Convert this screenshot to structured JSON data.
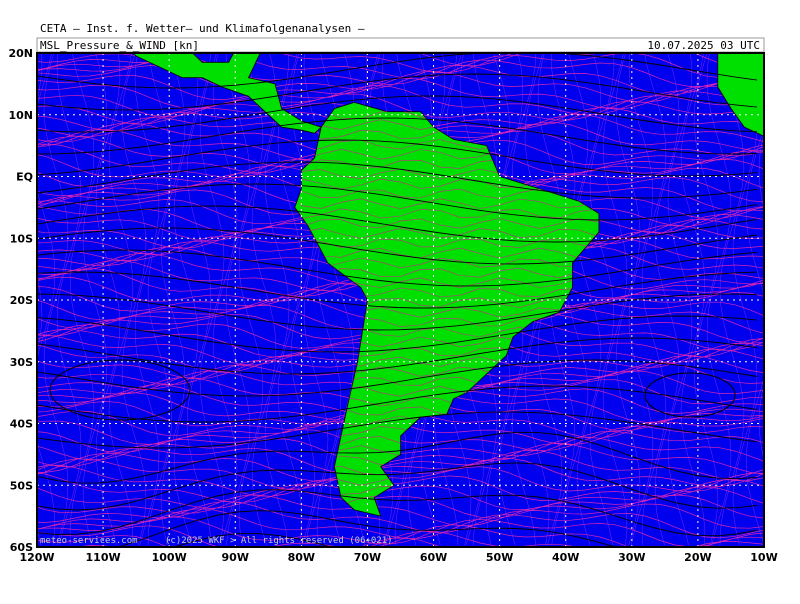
{
  "header": {
    "institute": "CETA — Inst. f. Wetter— und Klimafolgenanalysen —",
    "title": "MSL_Pressure_&_WIND [kn]",
    "valid_time": "10.07.2025 03 UTC"
  },
  "map": {
    "lat_labels": [
      "20N",
      "10N",
      "EQ",
      "10S",
      "20S",
      "30S",
      "40S",
      "50S",
      "60S"
    ],
    "lon_labels": [
      "120W",
      "110W",
      "100W",
      "90W",
      "80W",
      "70W",
      "60W",
      "50W",
      "40W",
      "30W",
      "20W",
      "10W"
    ]
  },
  "footer": {
    "site": "meteo-services.com",
    "copyright": "(c)2025 WKF > All rights reserved (06+021)"
  }
}
